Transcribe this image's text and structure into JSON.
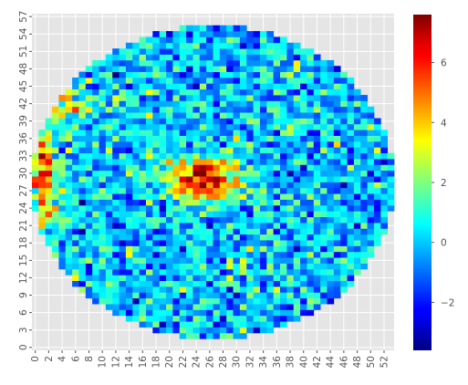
{
  "chart_data": {
    "type": "heatmap",
    "title": "",
    "xlabel": "",
    "ylabel": "",
    "grid": true,
    "colormap": "jet",
    "background_color": "#e5e5e5",
    "grid_color": "#ffffff",
    "n_cols": 54,
    "n_rows": 58,
    "xlim": [
      0,
      53
    ],
    "ylim": [
      0,
      57
    ],
    "x_ticks": [
      0,
      2,
      4,
      6,
      8,
      10,
      12,
      14,
      16,
      18,
      20,
      22,
      24,
      26,
      28,
      30,
      32,
      34,
      36,
      38,
      40,
      42,
      44,
      46,
      48,
      50,
      52
    ],
    "x_tick_labels": [
      "0",
      "2",
      "4",
      "6",
      "8",
      "10",
      "12",
      "14",
      "16",
      "18",
      "20",
      "22",
      "24",
      "26",
      "28",
      "30",
      "32",
      "34",
      "36",
      "38",
      "40",
      "42",
      "44",
      "46",
      "48",
      "50",
      "52"
    ],
    "y_ticks": [
      0,
      3,
      6,
      9,
      12,
      15,
      18,
      21,
      24,
      27,
      30,
      33,
      36,
      39,
      42,
      45,
      48,
      51,
      54,
      57
    ],
    "y_tick_labels": [
      "0",
      "3",
      "6",
      "9",
      "12",
      "15",
      "18",
      "21",
      "24",
      "27",
      "30",
      "33",
      "36",
      "39",
      "42",
      "45",
      "48",
      "51",
      "54",
      "57"
    ],
    "circle": {
      "center": [
        26.5,
        28.5
      ],
      "radius": 27
    },
    "value_range": [
      -3.6,
      7.6
    ],
    "colorbar": {
      "ticks": [
        -2,
        0,
        2,
        4,
        6
      ],
      "tick_labels": [
        "−2",
        "0",
        "2",
        "4",
        "6"
      ]
    },
    "hot_spots": [
      {
        "name": "central-hot-region",
        "center": [
          25,
          29
        ],
        "radius": [
          6,
          4
        ],
        "peak": 6.5
      },
      {
        "name": "left-edge-hot-region",
        "center": [
          1,
          30
        ],
        "radius": [
          2.5,
          9
        ],
        "peak": 5.2
      },
      {
        "name": "upper-left-hot-region",
        "center": [
          5,
          42
        ],
        "radius": [
          3,
          3
        ],
        "peak": 3.5
      }
    ],
    "typical_value": 0.0,
    "noise_std": 1.2,
    "random_seed": 12345
  }
}
